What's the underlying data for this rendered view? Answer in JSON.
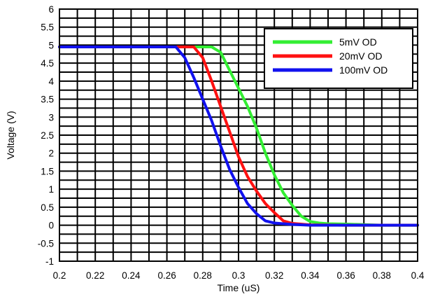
{
  "chart_data": {
    "type": "line",
    "title": "",
    "xlabel": "Time (uS)",
    "ylabel": "Voltage (V)",
    "xlim": [
      0.2,
      0.4
    ],
    "ylim": [
      -1,
      6
    ],
    "xticks": [
      0.2,
      0.21,
      0.22,
      0.23,
      0.24,
      0.25,
      0.26,
      0.27,
      0.28,
      0.29,
      0.3,
      0.31,
      0.32,
      0.33,
      0.34,
      0.35,
      0.36,
      0.37,
      0.38,
      0.39,
      0.4
    ],
    "yticks": [
      -1,
      -0.75,
      -0.5,
      -0.25,
      0,
      0.25,
      0.5,
      0.75,
      1,
      1.25,
      1.5,
      1.75,
      2,
      2.25,
      2.5,
      2.75,
      3,
      3.25,
      3.5,
      3.75,
      4,
      4.25,
      4.5,
      4.75,
      5,
      5.25,
      5.5,
      5.75,
      6
    ],
    "xtick_labels": [
      "0.2",
      "0.22",
      "0.24",
      "0.26",
      "0.28",
      "0.3",
      "0.32",
      "0.34",
      "0.36",
      "0.38",
      "0.4"
    ],
    "ytick_labels": [
      "-1",
      "-0.5",
      "0",
      "0.5",
      "1",
      "1.5",
      "2",
      "2.5",
      "3",
      "3.5",
      "4",
      "4.5",
      "5",
      "5.5",
      "6"
    ],
    "grid": true,
    "legend_position": "top-right",
    "series": [
      {
        "name": "5mV OD",
        "color": "#33ee33",
        "x": [
          0.2,
          0.27,
          0.285,
          0.29,
          0.295,
          0.3,
          0.305,
          0.31,
          0.315,
          0.32,
          0.325,
          0.33,
          0.335,
          0.34,
          0.345,
          0.35,
          0.36,
          0.38,
          0.4
        ],
        "y": [
          4.95,
          4.95,
          4.95,
          4.8,
          4.3,
          3.8,
          3.3,
          2.7,
          2.0,
          1.4,
          0.9,
          0.55,
          0.25,
          0.1,
          0.06,
          0.04,
          0.03,
          0.0,
          0.0
        ]
      },
      {
        "name": "20mV OD",
        "color": "#ff1111",
        "x": [
          0.2,
          0.265,
          0.275,
          0.28,
          0.285,
          0.29,
          0.295,
          0.3,
          0.305,
          0.31,
          0.315,
          0.32,
          0.325,
          0.33,
          0.34,
          0.36,
          0.4
        ],
        "y": [
          4.95,
          4.95,
          4.95,
          4.65,
          4.0,
          3.3,
          2.6,
          1.9,
          1.35,
          0.95,
          0.6,
          0.35,
          0.12,
          0.05,
          0.01,
          0.0,
          0.0
        ]
      },
      {
        "name": "100mV OD",
        "color": "#1111ee",
        "x": [
          0.2,
          0.265,
          0.27,
          0.275,
          0.28,
          0.285,
          0.29,
          0.295,
          0.3,
          0.305,
          0.31,
          0.315,
          0.32,
          0.33,
          0.34,
          0.4
        ],
        "y": [
          4.95,
          4.95,
          4.65,
          4.1,
          3.5,
          2.9,
          2.2,
          1.55,
          1.05,
          0.6,
          0.32,
          0.12,
          0.06,
          0.02,
          0.0,
          0.0
        ]
      }
    ]
  }
}
